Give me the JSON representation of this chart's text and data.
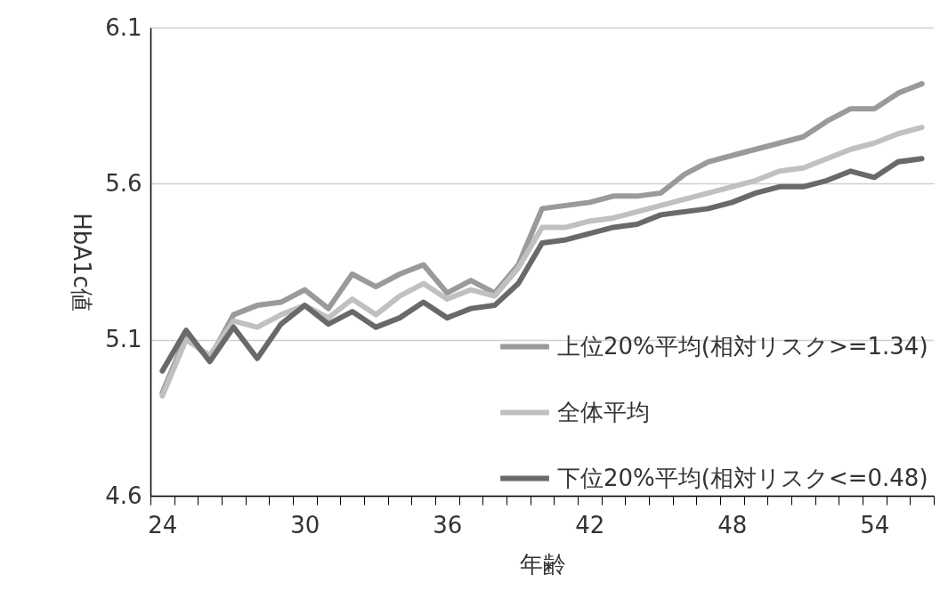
{
  "chart_data": {
    "type": "line",
    "xlabel": "年齢",
    "ylabel": "HbA1c値",
    "categories": [
      "24",
      null,
      null,
      null,
      null,
      null,
      "30",
      null,
      null,
      null,
      null,
      null,
      "36",
      null,
      null,
      null,
      null,
      null,
      "42",
      null,
      null,
      null,
      null,
      null,
      "48",
      null,
      null,
      null,
      null,
      null,
      "54",
      null,
      null
    ],
    "series": [
      {
        "name": "上位20%平均(相対リスク>=1.34)",
        "color": "#9a9a9a",
        "values": [
          4.93,
          5.11,
          5.04,
          5.18,
          5.21,
          5.22,
          5.26,
          5.2,
          5.31,
          5.27,
          5.31,
          5.34,
          5.25,
          5.29,
          5.25,
          5.34,
          5.52,
          5.53,
          5.54,
          5.56,
          5.56,
          5.57,
          5.63,
          5.67,
          5.69,
          5.71,
          5.73,
          5.75,
          5.8,
          5.84,
          5.84,
          5.89,
          5.92
        ]
      },
      {
        "name": "全体平均",
        "color": "#c0c0c0",
        "values": [
          4.92,
          5.1,
          5.05,
          5.16,
          5.14,
          5.18,
          5.21,
          5.17,
          5.23,
          5.18,
          5.24,
          5.28,
          5.23,
          5.26,
          5.24,
          5.33,
          5.46,
          5.46,
          5.48,
          5.49,
          5.51,
          5.53,
          5.55,
          5.57,
          5.59,
          5.61,
          5.64,
          5.65,
          5.68,
          5.71,
          5.73,
          5.76,
          5.78
        ]
      },
      {
        "name": "下位20%平均(相対リスク<=0.48)",
        "color": "#696969",
        "values": [
          5.0,
          5.13,
          5.03,
          5.14,
          5.04,
          5.15,
          5.21,
          5.15,
          5.19,
          5.14,
          5.17,
          5.22,
          5.17,
          5.2,
          5.21,
          5.28,
          5.41,
          5.42,
          5.44,
          5.46,
          5.47,
          5.5,
          5.51,
          5.52,
          5.54,
          5.57,
          5.59,
          5.59,
          5.61,
          5.64,
          5.62,
          5.67,
          5.68
        ]
      }
    ],
    "ylim": [
      4.6,
      6.1
    ],
    "yticks": [
      4.6,
      5.1,
      5.6,
      6.1
    ],
    "grid": "y",
    "legend": "bottom right",
    "marker": "none",
    "line_style": "solid"
  }
}
